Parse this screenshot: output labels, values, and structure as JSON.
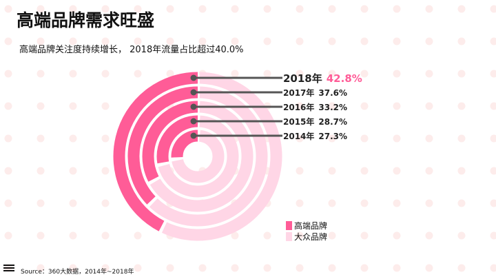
{
  "title": "高端品牌需求旺盛",
  "subtitle": "高端品牌关注度持续增长， 2018年流量占比超过40.0%",
  "source": "Source：360大数据，2014年~2018年",
  "colors": {
    "premium": "#ff5c97",
    "mass": "#ffd6e6",
    "dots": "#fdeceb",
    "highlight": "#ff5c97"
  },
  "chart_data": {
    "type": "radial-bar",
    "series": [
      {
        "name": "高端品牌"
      },
      {
        "name": "大众品牌"
      }
    ],
    "categories": [
      "2018年",
      "2017年",
      "2016年",
      "2015年",
      "2014年"
    ],
    "values": [
      42.8,
      37.6,
      33.2,
      28.7,
      27.3
    ],
    "value_labels": [
      "42.8%",
      "37.6%",
      "33.2%",
      "28.7%",
      "27.3%"
    ],
    "ylim": [
      0,
      100
    ],
    "legend_position": "bottom-right"
  }
}
